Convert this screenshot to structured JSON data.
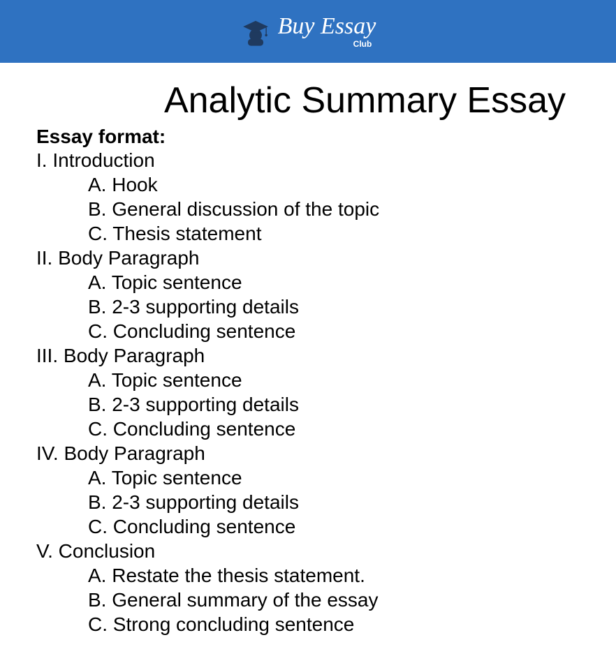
{
  "header": {
    "brand_main": "Buy Essay",
    "brand_sub": "Club",
    "bg_color": "#2f72c1",
    "icon_color": "#1f3a5f",
    "text_color": "#ffffff"
  },
  "document": {
    "title": "Analytic Summary Essay",
    "title_fontsize": 52,
    "format_label": "Essay format:",
    "body_fontsize": 28,
    "text_color": "#000000",
    "background_color": "#ffffff",
    "outline": [
      {
        "level": 1,
        "text": "I. Introduction"
      },
      {
        "level": 2,
        "text": "A. Hook"
      },
      {
        "level": 2,
        "text": "B. General discussion of the topic"
      },
      {
        "level": 2,
        "text": "C. Thesis statement"
      },
      {
        "level": 1,
        "text": "II. Body Paragraph"
      },
      {
        "level": 2,
        "text": "A. Topic sentence"
      },
      {
        "level": 2,
        "text": "B. 2-3 supporting details"
      },
      {
        "level": 2,
        "text": "C. Concluding sentence"
      },
      {
        "level": 1,
        "text": "III. Body Paragraph"
      },
      {
        "level": 2,
        "text": "A. Topic sentence"
      },
      {
        "level": 2,
        "text": "B. 2-3 supporting details"
      },
      {
        "level": 2,
        "text": "C. Concluding sentence"
      },
      {
        "level": 1,
        "text": "IV. Body Paragraph"
      },
      {
        "level": 2,
        "text": "A. Topic sentence"
      },
      {
        "level": 2,
        "text": "B. 2-3 supporting details"
      },
      {
        "level": 2,
        "text": "C. Concluding sentence"
      },
      {
        "level": 1,
        "text": "V. Conclusion"
      },
      {
        "level": 2,
        "text": "A. Restate the thesis statement."
      },
      {
        "level": 2,
        "text": "B. General summary of the essay"
      },
      {
        "level": 2,
        "text": "C. Strong concluding sentence"
      }
    ]
  }
}
